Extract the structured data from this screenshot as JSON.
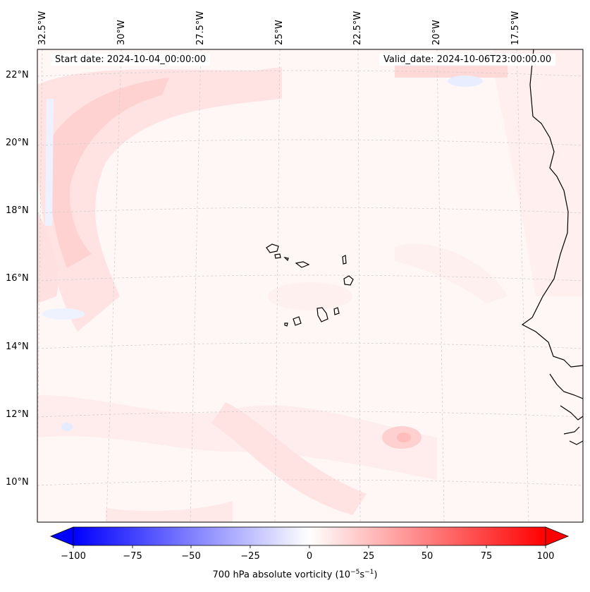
{
  "map": {
    "annotations": {
      "start": "Start date: 2024-10-04_00:00:00",
      "valid": "Valid_date: 2024-10-06T23:00:00.00"
    },
    "lon_labels": [
      "32.5°W",
      "30°W",
      "27.5°W",
      "25°W",
      "22.5°W",
      "20°W",
      "17.5°W"
    ],
    "lat_labels": [
      "22°N",
      "20°N",
      "18°N",
      "16°N",
      "14°N",
      "12°N",
      "10°N"
    ],
    "field": "700 hPa absolute vorticity",
    "colors": {
      "neg_max": "#0000ff",
      "pos_max": "#ff0000",
      "coast": "#000000"
    }
  },
  "colorbar": {
    "ticks": [
      "−100",
      "−75",
      "−50",
      "−25",
      "0",
      "25",
      "50",
      "75",
      "100"
    ],
    "label": "700 hPa absolute vorticity (10",
    "label_exp1": "−5",
    "label_mid": "s",
    "label_exp2": "−1",
    "label_end": ")"
  }
}
